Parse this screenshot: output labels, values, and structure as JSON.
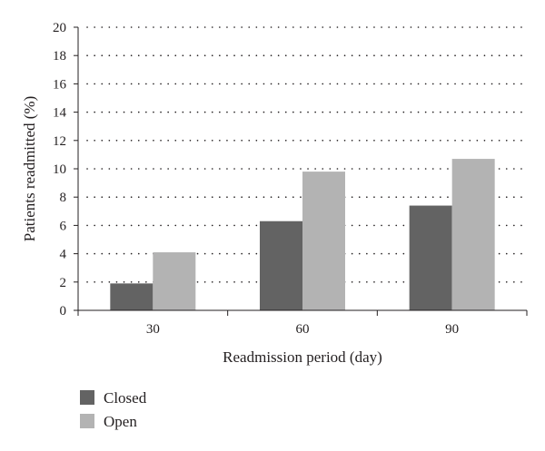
{
  "chart_data": {
    "type": "bar",
    "categories": [
      "30",
      "60",
      "90"
    ],
    "series": [
      {
        "name": "Closed",
        "values": [
          1.9,
          6.3,
          7.4
        ],
        "color": "#636363"
      },
      {
        "name": "Open",
        "values": [
          4.1,
          9.8,
          10.7
        ],
        "color": "#b3b3b3"
      }
    ],
    "xlabel": "Readmission period (day)",
    "ylabel": "Patients readmitted (%)",
    "ylim": [
      0,
      20
    ],
    "yticks": [
      0,
      2,
      4,
      6,
      8,
      10,
      12,
      14,
      16,
      18,
      20
    ],
    "grid": true,
    "legend_position": "bottom-left"
  }
}
